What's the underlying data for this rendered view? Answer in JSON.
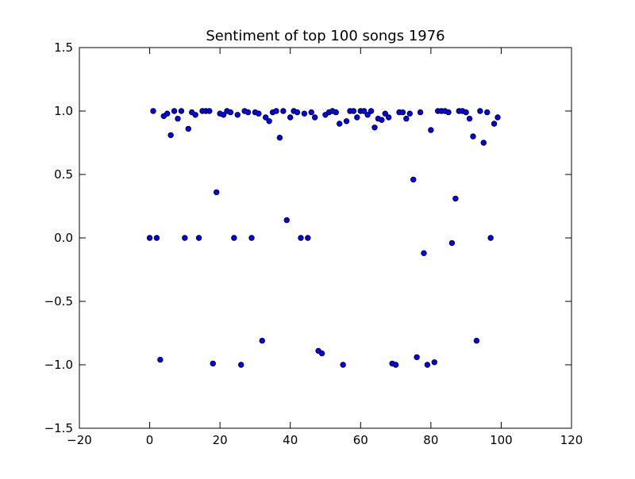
{
  "chart_data": {
    "type": "scatter",
    "title": "Sentiment of top 100 songs 1976",
    "xlabel": "",
    "ylabel": "",
    "xlim": [
      -20,
      120
    ],
    "ylim": [
      -1.5,
      1.5
    ],
    "xticks": [
      -20,
      0,
      20,
      40,
      60,
      80,
      100,
      120
    ],
    "yticks": [
      -1.5,
      -1.0,
      -0.5,
      0.0,
      0.5,
      1.0,
      1.5
    ],
    "xtick_labels": [
      "−20",
      "0",
      "20",
      "40",
      "60",
      "80",
      "100",
      "120"
    ],
    "ytick_labels": [
      "−1.5",
      "−1.0",
      "−0.5",
      "0.0",
      "0.5",
      "1.0",
      "1.5"
    ],
    "marker_color": "#0000ff",
    "marker_edge": "#000000",
    "series": [
      {
        "x": [
          0,
          1,
          2,
          3,
          4,
          5,
          6,
          7,
          8,
          9,
          10,
          11,
          12,
          13,
          14,
          15,
          16,
          17,
          18,
          19,
          20,
          21,
          22,
          23,
          24,
          25,
          26,
          27,
          28,
          29,
          30,
          31,
          32,
          33,
          34,
          35,
          36,
          37,
          38,
          39,
          40,
          41,
          42,
          43,
          44,
          45,
          46,
          47,
          48,
          49,
          50,
          51,
          52,
          53,
          54,
          55,
          56,
          57,
          58,
          59,
          60,
          61,
          62,
          63,
          64,
          65,
          66,
          67,
          68,
          69,
          70,
          71,
          72,
          73,
          74,
          75,
          76,
          77,
          78,
          79,
          80,
          81,
          82,
          83,
          84,
          85,
          86,
          87,
          88,
          89,
          90,
          91,
          92,
          93,
          94,
          95,
          96,
          97,
          98,
          99
        ],
        "y": [
          0.0,
          1.0,
          0.0,
          -0.96,
          0.96,
          0.98,
          0.81,
          1.0,
          0.94,
          1.0,
          0.0,
          0.86,
          0.99,
          0.97,
          0.0,
          1.0,
          1.0,
          1.0,
          -0.99,
          0.36,
          0.98,
          0.97,
          1.0,
          0.99,
          0.0,
          0.97,
          -1.0,
          1.0,
          0.99,
          0.0,
          0.99,
          0.98,
          -0.81,
          0.95,
          0.92,
          0.99,
          1.0,
          0.79,
          1.0,
          0.14,
          0.95,
          1.0,
          0.99,
          0.0,
          0.98,
          0.0,
          0.99,
          0.95,
          -0.89,
          -0.91,
          0.97,
          0.99,
          1.0,
          0.99,
          0.9,
          -1.0,
          0.92,
          1.0,
          1.0,
          0.95,
          1.0,
          1.0,
          0.97,
          1.0,
          0.87,
          0.94,
          0.93,
          0.98,
          0.95,
          -0.99,
          -1.0,
          0.99,
          0.99,
          0.94,
          0.98,
          0.46,
          -0.94,
          0.99,
          -0.12,
          -1.0,
          0.85,
          -0.98,
          1.0,
          1.0,
          1.0,
          0.99,
          -0.04,
          0.31,
          1.0,
          1.0,
          0.99,
          0.94,
          0.8,
          -0.81,
          1.0,
          0.75,
          0.99,
          0.0,
          0.9,
          0.95
        ]
      }
    ]
  }
}
